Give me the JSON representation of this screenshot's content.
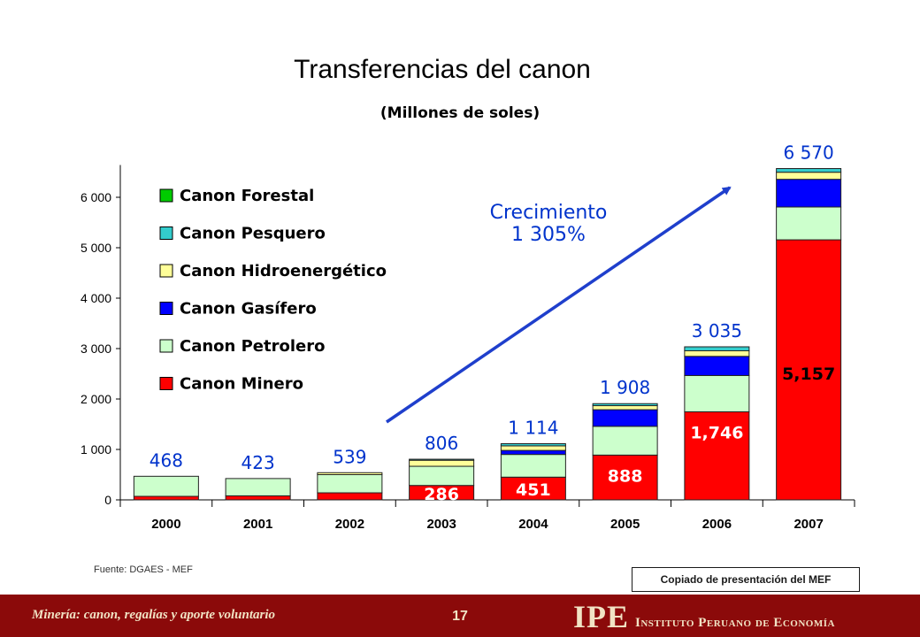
{
  "header": {
    "title": "Transferencias del canon",
    "subtitle": "(Millones de soles)"
  },
  "chart_data": {
    "type": "bar",
    "stacked": true,
    "categories": [
      "2000",
      "2001",
      "2002",
      "2003",
      "2004",
      "2005",
      "2006",
      "2007"
    ],
    "ylim": [
      0,
      6500
    ],
    "yticks": [
      0,
      1000,
      2000,
      3000,
      4000,
      5000,
      6000
    ],
    "ytick_labels": [
      "0",
      "1 000",
      "2 000",
      "3 000",
      "4 000",
      "5 000",
      "6 000"
    ],
    "series": [
      {
        "name": "Canon Minero",
        "color": "#ff0000",
        "values": [
          70,
          80,
          140,
          286,
          451,
          888,
          1746,
          5157
        ]
      },
      {
        "name": "Canon Petrolero",
        "color": "#ccffcc",
        "values": [
          398,
          343,
          360,
          380,
          450,
          570,
          720,
          650
        ]
      },
      {
        "name": "Canon Gasífero",
        "color": "#0000ff",
        "values": [
          0,
          0,
          0,
          0,
          80,
          330,
          380,
          550
        ]
      },
      {
        "name": "Canon Hidroenergético",
        "color": "#ffff99",
        "values": [
          0,
          0,
          39,
          120,
          90,
          80,
          110,
          140
        ]
      },
      {
        "name": "Canon Pesquero",
        "color": "#33cccc",
        "values": [
          0,
          0,
          0,
          20,
          43,
          40,
          79,
          73
        ]
      },
      {
        "name": "Canon Forestal",
        "color": "#00cc00",
        "values": [
          0,
          0,
          0,
          0,
          0,
          0,
          0,
          0
        ]
      }
    ],
    "legend_order": [
      "Canon Forestal",
      "Canon Pesquero",
      "Canon Hidroenergético",
      "Canon Gasífero",
      "Canon Petrolero",
      "Canon Minero"
    ],
    "totals": [
      468,
      423,
      539,
      806,
      1114,
      1908,
      3035,
      6570
    ],
    "total_labels": [
      "468",
      "423",
      "539",
      "806",
      "1 114",
      "1 908",
      "3 035",
      "6 570"
    ],
    "minero_labels": [
      "",
      "",
      "",
      "286",
      "451",
      "888",
      "1,746",
      "5,157"
    ],
    "annotation": {
      "line1": "Crecimiento",
      "line2": "1 305%"
    },
    "legend_position": "top-left",
    "grid": false
  },
  "source": "Fuente: DGAES - MEF",
  "note": "Copiado de presentación del MEF",
  "footer": {
    "text": "Minería: canon, regalías y aporte voluntario",
    "page": "17",
    "logo": "IPE",
    "institute": "Instituto Peruano de Economía"
  },
  "colors": {
    "total_label": "#0033cc",
    "arrow": "#1f3fcc",
    "footer_bg": "#8b0a0a",
    "footer_text": "#f1e3c4"
  }
}
